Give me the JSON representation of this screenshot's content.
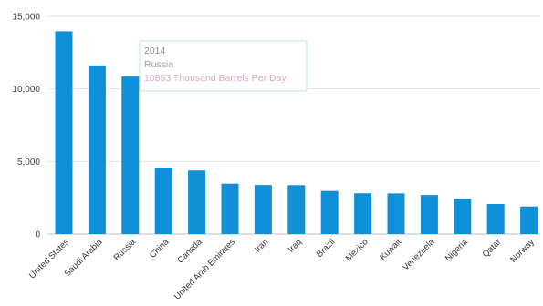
{
  "chart_data": {
    "type": "bar",
    "categories": [
      "United States",
      "Saudi Arabia",
      "Russia",
      "China",
      "Canada",
      "United Arab Emirates",
      "Iran",
      "Iraq",
      "Brazil",
      "Mexico",
      "Kuwait",
      "Venezuela",
      "Nigeria",
      "Qatar",
      "Norway"
    ],
    "values": [
      13970,
      11620,
      10853,
      4580,
      4380,
      3470,
      3380,
      3370,
      2970,
      2810,
      2800,
      2690,
      2430,
      2070,
      1900
    ],
    "ylim": [
      0,
      15000
    ],
    "yticks": [
      0,
      5000,
      10000,
      15000
    ],
    "ytick_labels": [
      "0",
      "5,000",
      "10,000",
      "15,000"
    ],
    "grid": true,
    "bar_color": "#0f90d8",
    "tooltip": {
      "category": "Russia",
      "line1": "2014",
      "line2": "Russia",
      "line3": "10853 Thousand Barrels Per Day",
      "color_line1": "#8a8a8a",
      "color_line2": "#a0a0a0",
      "color_line3": "#d9a8c8"
    }
  }
}
